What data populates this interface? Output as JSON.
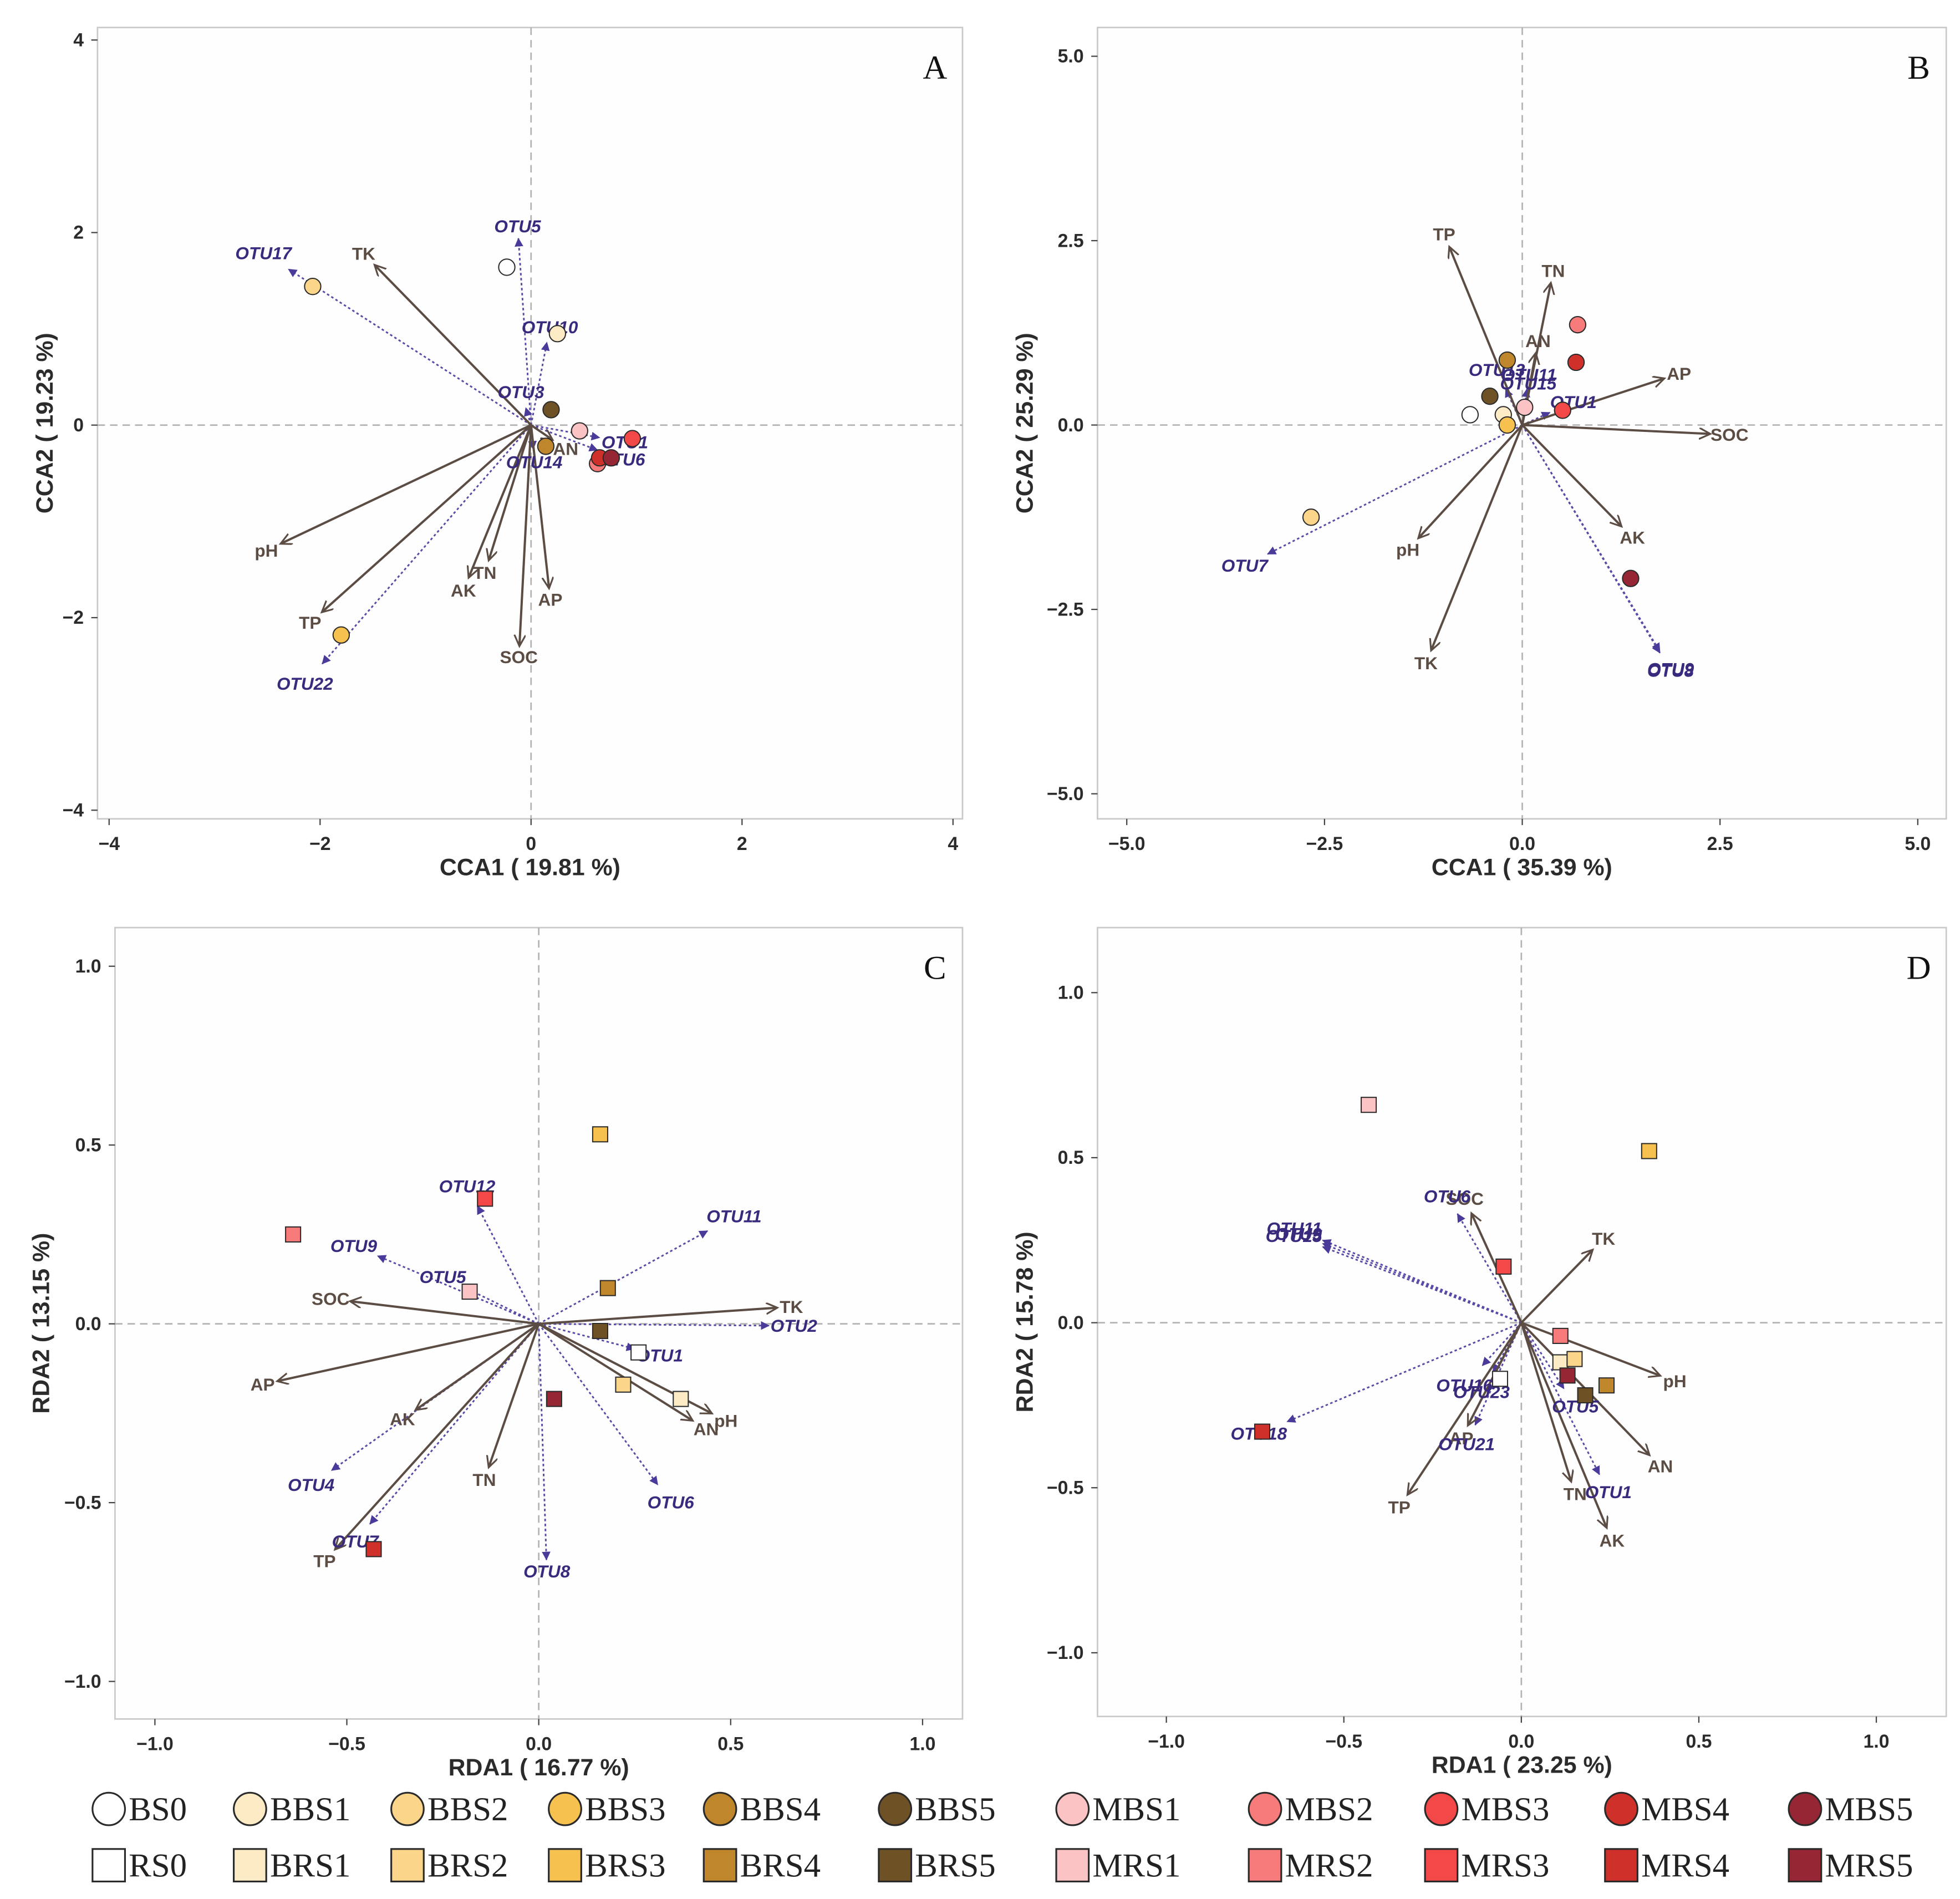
{
  "chart_data": [
    {
      "panel": "A",
      "type": "scatter",
      "xlabel": "CCA1 ( 19.81 %)",
      "ylabel": "CCA2 ( 19.23 %)",
      "xlim": [
        -4.11,
        4.09
      ],
      "ylim": [
        -4.09,
        4.13
      ],
      "xticks": [
        -4,
        -2,
        0,
        2,
        4
      ],
      "xtick_labels": [
        "−4",
        "−2",
        "0",
        "2",
        "4"
      ],
      "yticks": [
        4,
        2,
        0,
        -2,
        -4
      ],
      "ytick_labels": [
        "4",
        "2",
        "0",
        "−2",
        "−4"
      ],
      "env_vectors": [
        {
          "name": "TK",
          "x": -1.48,
          "y": 1.66
        },
        {
          "name": "pH",
          "x": -2.37,
          "y": -1.23
        },
        {
          "name": "TP",
          "x": -1.98,
          "y": -1.94
        },
        {
          "name": "AK",
          "x": -0.59,
          "y": -1.58
        },
        {
          "name": "TN",
          "x": -0.4,
          "y": -1.4
        },
        {
          "name": "AP",
          "x": 0.17,
          "y": -1.69
        },
        {
          "name": "SOC",
          "x": -0.11,
          "y": -2.29
        },
        {
          "name": "AN",
          "x": 0.2,
          "y": -0.15
        }
      ],
      "otu_vectors": [
        {
          "name": "OTU17",
          "x": -2.3,
          "y": 1.62
        },
        {
          "name": "OTU5",
          "x": -0.12,
          "y": 1.94
        },
        {
          "name": "OTU10",
          "x": 0.15,
          "y": 0.86
        },
        {
          "name": "OTU3",
          "x": -0.05,
          "y": 0.18
        },
        {
          "name": "OTU14",
          "x": 0.02,
          "y": -0.25
        },
        {
          "name": "OTU22",
          "x": -1.98,
          "y": -2.48
        },
        {
          "name": "OTU1",
          "x": 0.65,
          "y": -0.13
        },
        {
          "name": "OTU6",
          "x": 0.63,
          "y": -0.26
        }
      ],
      "samples": {
        "BS0": {
          "x": -0.23,
          "y": 1.64
        },
        "BBS1": {
          "x": 0.25,
          "y": 0.95
        },
        "BBS2": {
          "x": -2.07,
          "y": 1.44
        },
        "BBS3": {
          "x": -1.8,
          "y": -2.18
        },
        "BBS4": {
          "x": 0.14,
          "y": -0.22
        },
        "BBS5": {
          "x": 0.19,
          "y": 0.16
        },
        "MBS1": {
          "x": 0.46,
          "y": -0.06
        },
        "MBS2": {
          "x": 0.63,
          "y": -0.4
        },
        "MBS3": {
          "x": 0.96,
          "y": -0.14
        },
        "MBS4": {
          "x": 0.65,
          "y": -0.34
        },
        "MBS5": {
          "x": 0.76,
          "y": -0.34
        }
      }
    },
    {
      "panel": "B",
      "type": "scatter",
      "xlabel": "CCA1 ( 35.39 %)",
      "ylabel": "CCA2 ( 25.29 %)",
      "xlim": [
        -5.37,
        5.36
      ],
      "ylim": [
        -5.34,
        5.39
      ],
      "xticks": [
        -5,
        -2.5,
        0,
        2.5,
        5
      ],
      "xtick_labels": [
        "−5.0",
        "−2.5",
        "0.0",
        "2.5",
        "5.0"
      ],
      "yticks": [
        5,
        2.5,
        0,
        -2.5,
        -5
      ],
      "ytick_labels": [
        "5.0",
        "2.5",
        "0.0",
        "−2.5",
        "−5.0"
      ],
      "env_vectors": [
        {
          "name": "TP",
          "x": -0.92,
          "y": 2.41
        },
        {
          "name": "TN",
          "x": 0.36,
          "y": 1.92
        },
        {
          "name": "AN",
          "x": 0.17,
          "y": 0.97
        },
        {
          "name": "AP",
          "x": 1.79,
          "y": 0.63
        },
        {
          "name": "SOC",
          "x": 2.37,
          "y": -0.12
        },
        {
          "name": "AK",
          "x": 1.25,
          "y": -1.37
        },
        {
          "name": "pH",
          "x": -1.31,
          "y": -1.53
        },
        {
          "name": "TK",
          "x": -1.15,
          "y": -3.05
        }
      ],
      "otu_vectors": [
        {
          "name": "OTU7",
          "x": -3.22,
          "y": -1.75
        },
        {
          "name": "OTU9",
          "x": 1.74,
          "y": -3.07
        },
        {
          "name": "OTU8",
          "x": 1.74,
          "y": -3.09
        },
        {
          "name": "OTU1",
          "x": 0.35,
          "y": 0.17
        },
        {
          "name": "OTU13",
          "x": -0.21,
          "y": 0.49
        },
        {
          "name": "OTU11",
          "x": 0.06,
          "y": 0.49
        },
        {
          "name": "OTU15",
          "x": 0.05,
          "y": 0.37
        }
      ],
      "samples": {
        "BS0": {
          "x": -0.66,
          "y": 0.14
        },
        "BBS1": {
          "x": -0.24,
          "y": 0.14
        },
        "BBS2": {
          "x": -2.67,
          "y": -1.25
        },
        "BBS3": {
          "x": -0.19,
          "y": 0.0
        },
        "BBS4": {
          "x": -0.19,
          "y": 0.88
        },
        "BBS5": {
          "x": -0.41,
          "y": 0.39
        },
        "MBS1": {
          "x": 0.03,
          "y": 0.24
        },
        "MBS2": {
          "x": 0.7,
          "y": 1.36
        },
        "MBS3": {
          "x": 0.51,
          "y": 0.2
        },
        "MBS4": {
          "x": 0.68,
          "y": 0.85
        },
        "MBS5": {
          "x": 1.37,
          "y": -2.08
        }
      }
    },
    {
      "panel": "C",
      "type": "scatter",
      "xlabel": "RDA1 ( 16.77 %)",
      "ylabel": "RDA2 ( 13.15 %)",
      "xlim": [
        -1.104,
        1.104
      ],
      "ylim": [
        -1.105,
        1.108
      ],
      "xticks": [
        -1,
        -0.5,
        0,
        0.5,
        1
      ],
      "xtick_labels": [
        "−1.0",
        "−0.5",
        "0.0",
        "0.5",
        "1.0"
      ],
      "yticks": [
        1,
        0.5,
        0,
        -0.5,
        -1
      ],
      "ytick_labels": [
        "1.0",
        "0.5",
        "0.0",
        "−0.5",
        "−1.0"
      ],
      "env_vectors": [
        {
          "name": "TK",
          "x": 0.62,
          "y": 0.045
        },
        {
          "name": "pH",
          "x": 0.45,
          "y": -0.25
        },
        {
          "name": "AN",
          "x": 0.4,
          "y": -0.27
        },
        {
          "name": "SOC",
          "x": -0.49,
          "y": 0.063
        },
        {
          "name": "AP",
          "x": -0.68,
          "y": -0.16
        },
        {
          "name": "AK",
          "x": -0.32,
          "y": -0.24
        },
        {
          "name": "TN",
          "x": -0.13,
          "y": -0.4
        },
        {
          "name": "TP",
          "x": -0.53,
          "y": -0.63
        }
      ],
      "otu_vectors": [
        {
          "name": "OTU12",
          "x": -0.16,
          "y": 0.33
        },
        {
          "name": "OTU11",
          "x": 0.44,
          "y": 0.26
        },
        {
          "name": "OTU9",
          "x": -0.42,
          "y": 0.19
        },
        {
          "name": "OTU5",
          "x": -0.19,
          "y": 0.1
        },
        {
          "name": "OTU2",
          "x": 0.6,
          "y": -0.005
        },
        {
          "name": "OTU1",
          "x": 0.25,
          "y": -0.07
        },
        {
          "name": "OTU6",
          "x": 0.31,
          "y": -0.45
        },
        {
          "name": "OTU8",
          "x": 0.02,
          "y": -0.66
        },
        {
          "name": "OTU4",
          "x": -0.54,
          "y": -0.41
        },
        {
          "name": "OTU7",
          "x": -0.44,
          "y": -0.56
        }
      ],
      "samples": {
        "RS0": {
          "x": 0.26,
          "y": -0.08
        },
        "BRS1": {
          "x": 0.37,
          "y": -0.21
        },
        "BRS2": {
          "x": 0.22,
          "y": -0.17
        },
        "BRS3": {
          "x": 0.16,
          "y": 0.53
        },
        "BRS4": {
          "x": 0.18,
          "y": 0.1
        },
        "BRS5": {
          "x": 0.16,
          "y": -0.02
        },
        "MRS1": {
          "x": -0.18,
          "y": 0.09
        },
        "MRS2": {
          "x": -0.64,
          "y": 0.25
        },
        "MRS3": {
          "x": -0.14,
          "y": 0.35
        },
        "MRS4": {
          "x": -0.43,
          "y": -0.63
        },
        "MRS5": {
          "x": 0.04,
          "y": -0.21
        }
      }
    },
    {
      "panel": "D",
      "type": "scatter",
      "xlabel": "RDA1 ( 23.25 %)",
      "ylabel": "RDA2 ( 15.78 %)",
      "xlim": [
        -1.194,
        1.197
      ],
      "ylim": [
        -1.193,
        1.197
      ],
      "xticks": [
        -1,
        -0.5,
        0,
        0.5,
        1
      ],
      "xtick_labels": [
        "−1.0",
        "−0.5",
        "0.0",
        "0.5",
        "1.0"
      ],
      "yticks": [
        1,
        0.5,
        0,
        -0.5,
        -1
      ],
      "ytick_labels": [
        "1.0",
        "0.5",
        "0.0",
        "−0.5",
        "−1.0"
      ],
      "env_vectors": [
        {
          "name": "TK",
          "x": 0.2,
          "y": 0.22
        },
        {
          "name": "SOC",
          "x": -0.14,
          "y": 0.33
        },
        {
          "name": "pH",
          "x": 0.39,
          "y": -0.16
        },
        {
          "name": "AN",
          "x": 0.36,
          "y": -0.4
        },
        {
          "name": "AK",
          "x": 0.24,
          "y": -0.62
        },
        {
          "name": "TN",
          "x": 0.14,
          "y": -0.48
        },
        {
          "name": "TP",
          "x": -0.32,
          "y": -0.52
        },
        {
          "name": "AP",
          "x": -0.15,
          "y": -0.31
        }
      ],
      "otu_vectors": [
        {
          "name": "OTU11",
          "x": -0.56,
          "y": 0.25
        },
        {
          "name": "OTU9",
          "x": -0.56,
          "y": 0.24
        },
        {
          "name": "OTU15",
          "x": -0.56,
          "y": 0.23
        },
        {
          "name": "OTU6",
          "x": -0.18,
          "y": 0.33
        },
        {
          "name": "OTU16",
          "x": -0.11,
          "y": -0.13
        },
        {
          "name": "OTU23",
          "x": -0.08,
          "y": -0.15
        },
        {
          "name": "OTU21",
          "x": -0.13,
          "y": -0.31
        },
        {
          "name": "OTU18",
          "x": -0.66,
          "y": -0.3
        },
        {
          "name": "OTU1",
          "x": 0.22,
          "y": -0.46
        },
        {
          "name": "OTU5",
          "x": 0.12,
          "y": -0.2
        }
      ],
      "samples": {
        "RS0": {
          "x": -0.06,
          "y": -0.17
        },
        "BRS1": {
          "x": 0.11,
          "y": -0.12
        },
        "BRS2": {
          "x": 0.15,
          "y": -0.11
        },
        "BRS3": {
          "x": 0.36,
          "y": 0.52
        },
        "BRS4": {
          "x": 0.24,
          "y": -0.19
        },
        "BRS5": {
          "x": 0.18,
          "y": -0.22
        },
        "MRS1": {
          "x": -0.43,
          "y": 0.66
        },
        "MRS2": {
          "x": 0.11,
          "y": -0.04
        },
        "MRS3": {
          "x": -0.05,
          "y": 0.17
        },
        "MRS4": {
          "x": -0.73,
          "y": -0.33
        },
        "MRS5": {
          "x": 0.13,
          "y": -0.16
        }
      }
    }
  ],
  "legend": {
    "circle": [
      {
        "label": "BS0",
        "color": "#ffffff"
      },
      {
        "label": "BBS1",
        "color": "#fdebc6"
      },
      {
        "label": "BBS2",
        "color": "#fad58a"
      },
      {
        "label": "BBS3",
        "color": "#f6c14e"
      },
      {
        "label": "BBS4",
        "color": "#c0862c"
      },
      {
        "label": "BBS5",
        "color": "#6e5226"
      },
      {
        "label": "MBS1",
        "color": "#fbc3c3"
      },
      {
        "label": "MBS2",
        "color": "#f77b7b"
      },
      {
        "label": "MBS3",
        "color": "#f24848"
      },
      {
        "label": "MBS4",
        "color": "#d0302a"
      },
      {
        "label": "MBS5",
        "color": "#962633"
      }
    ],
    "square": [
      {
        "label": "RS0",
        "color": "#ffffff"
      },
      {
        "label": "BRS1",
        "color": "#fdebc6"
      },
      {
        "label": "BRS2",
        "color": "#fad58a"
      },
      {
        "label": "BRS3",
        "color": "#f6c14e"
      },
      {
        "label": "BRS4",
        "color": "#c0862c"
      },
      {
        "label": "BRS5",
        "color": "#6e5226"
      },
      {
        "label": "MRS1",
        "color": "#fbc3c3"
      },
      {
        "label": "MRS2",
        "color": "#f77b7b"
      },
      {
        "label": "MRS3",
        "color": "#f24848"
      },
      {
        "label": "MRS4",
        "color": "#d0302a"
      },
      {
        "label": "MRS5",
        "color": "#962633"
      }
    ]
  }
}
